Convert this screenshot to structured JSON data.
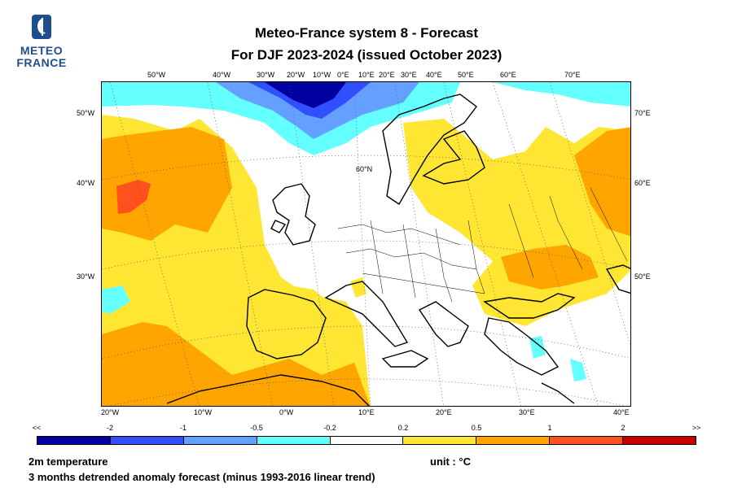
{
  "logo": {
    "line1": "METEO",
    "line2": "FRANCE"
  },
  "title": {
    "line1": "Meteo-France system 8  -  Forecast",
    "line2": "For DJF 2023-2024      (issued October 2023)"
  },
  "map": {
    "top_lon_labels": [
      "50°W",
      "40°W",
      "30°W",
      "20°W",
      "10°W",
      "0°E",
      "10°E",
      "20°E",
      "30°E",
      "40°E",
      "50°E",
      "60°E",
      "70°E"
    ],
    "bottom_lon_labels": [
      "20°W",
      "10°W",
      "0°W",
      "10°E",
      "20°E",
      "30°E",
      "40°E"
    ],
    "left_lat_labels": [
      "50°W",
      "40°W",
      "30°W"
    ],
    "right_lat_labels": [
      "70°E",
      "60°E",
      "50°E"
    ],
    "inner_label": "60°N",
    "colors": {
      "neg2": "#0000a0",
      "neg1": "#3050ff",
      "neg05": "#64a0ff",
      "neg02": "#64ffff",
      "neutral": "#ffffff",
      "pos02": "#ffe632",
      "pos05": "#ffa500",
      "pos1": "#ff501e",
      "pos2": "#c80000"
    }
  },
  "legend": {
    "labels": [
      "<<",
      "-2",
      "-1",
      "-0.5",
      "-0.2",
      "0.2",
      "0.5",
      "1",
      "2",
      ">>"
    ],
    "colors": [
      "#0000a0",
      "#3050ff",
      "#64a0ff",
      "#64ffff",
      "#ffffff",
      "#ffe632",
      "#ffa500",
      "#ff501e",
      "#c80000"
    ]
  },
  "footer": {
    "variable": "2m temperature",
    "unit": "unit : °C",
    "description": "3 months detrended anomaly forecast (minus 1993-2016 linear trend)"
  }
}
